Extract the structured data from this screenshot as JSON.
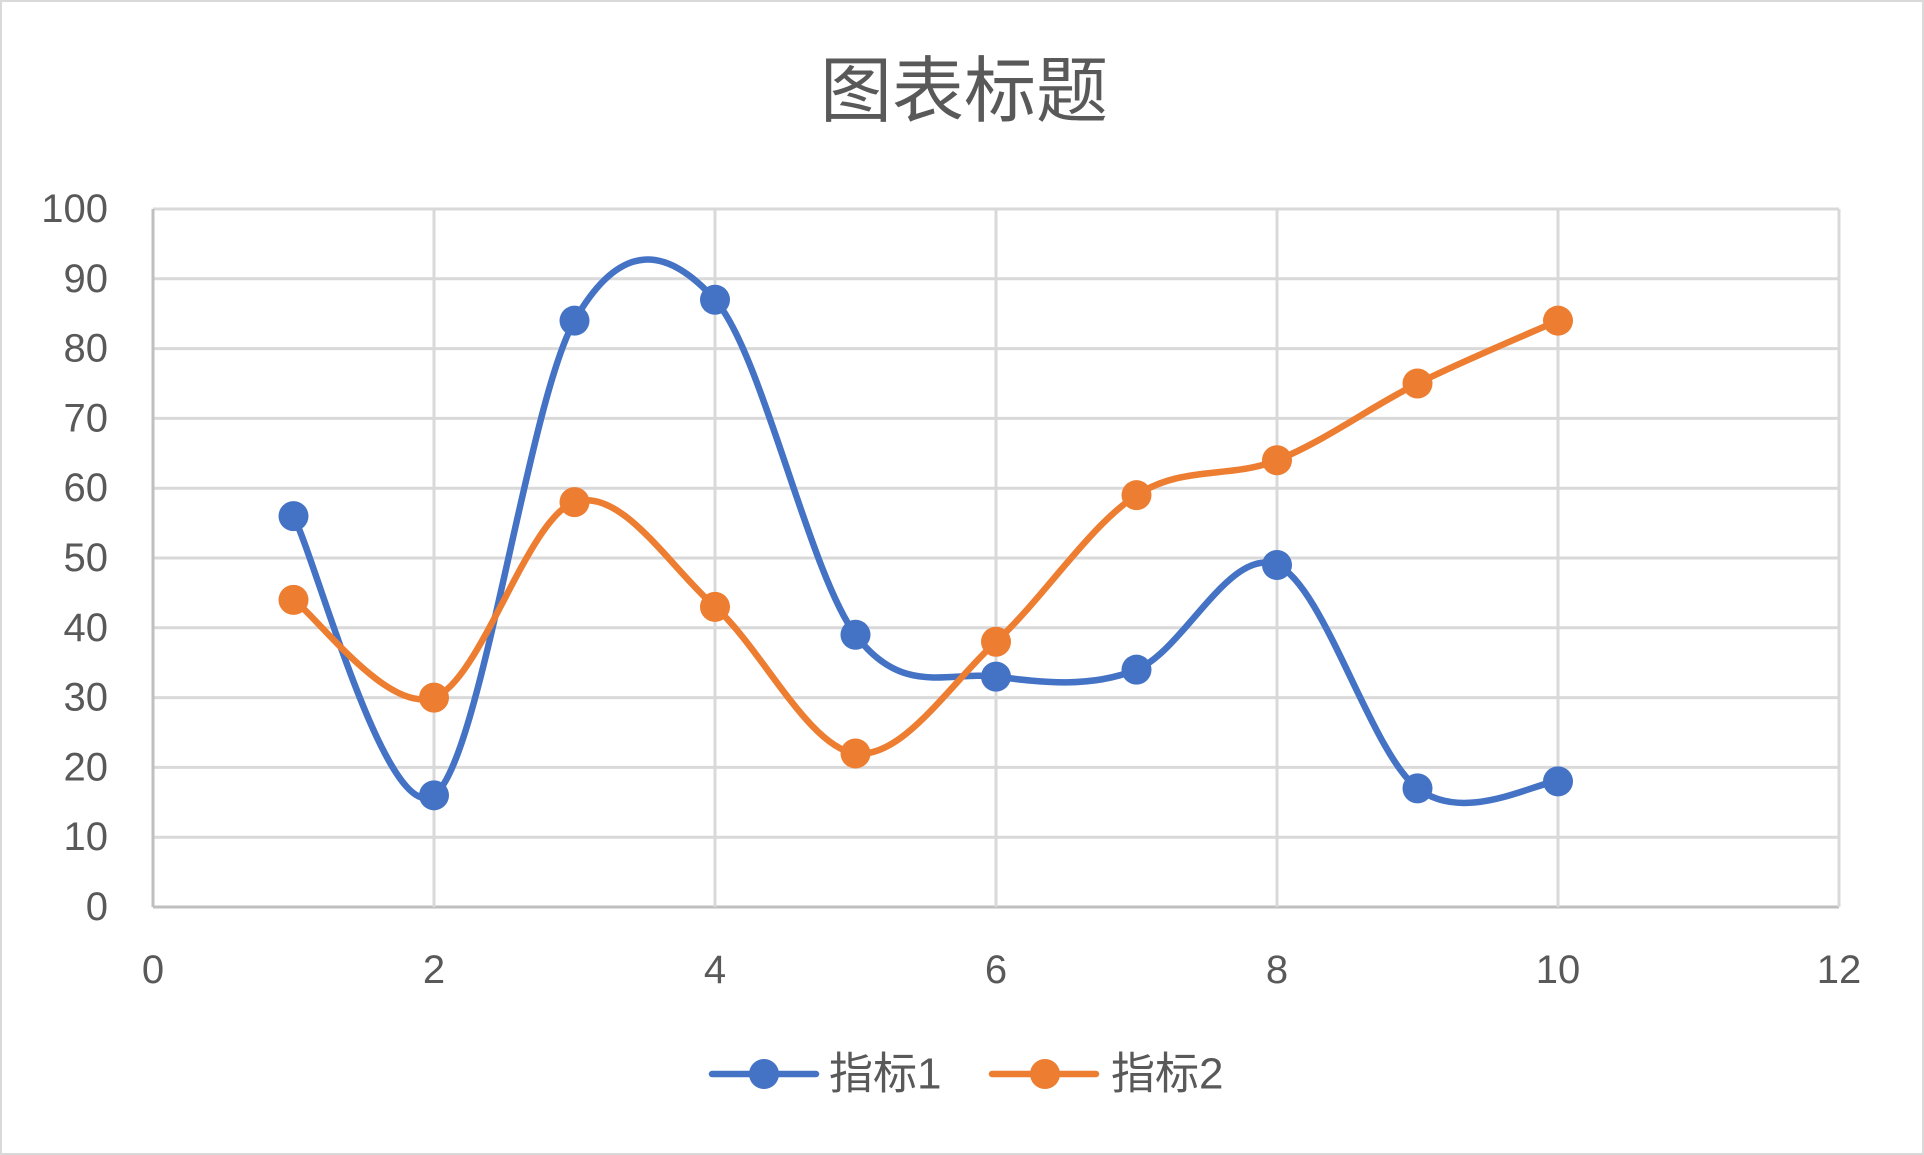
{
  "chart_data": {
    "type": "scatter",
    "title": "图表标题",
    "xlabel": "",
    "ylabel": "",
    "x": [
      1,
      2,
      3,
      4,
      5,
      6,
      7,
      8,
      9,
      10
    ],
    "series": [
      {
        "name": "指标1",
        "color": "#4472C4",
        "values": [
          56,
          16,
          84,
          87,
          39,
          33,
          34,
          49,
          17,
          18
        ]
      },
      {
        "name": "指标2",
        "color": "#ED7D31",
        "values": [
          44,
          30,
          58,
          43,
          22,
          38,
          59,
          64,
          75,
          84
        ]
      }
    ],
    "xlim": [
      0,
      12
    ],
    "ylim": [
      0,
      100
    ],
    "xticks": [
      0,
      2,
      4,
      6,
      8,
      10,
      12
    ],
    "yticks": [
      0,
      10,
      20,
      30,
      40,
      50,
      60,
      70,
      80,
      90,
      100
    ],
    "grid": true,
    "smooth": true,
    "markers": true,
    "legend": "bottom"
  }
}
